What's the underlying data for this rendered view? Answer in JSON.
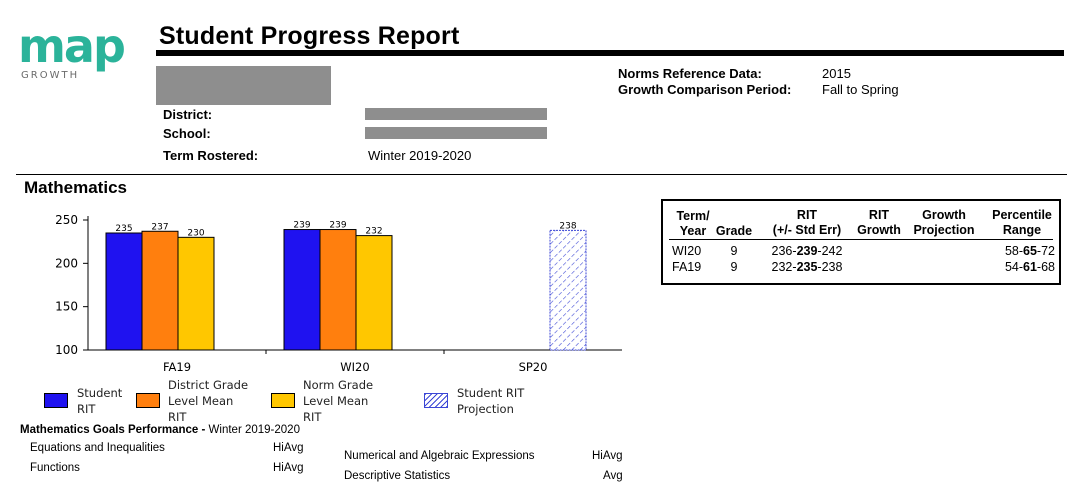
{
  "header": {
    "logo_text": "map",
    "logo_subtext": "GROWTH",
    "title": "Student Progress Report",
    "district_label": "District:",
    "school_label": "School:",
    "term_label": "Term Rostered:",
    "term_value": "Winter 2019-2020",
    "norms_label": "Norms Reference Data:",
    "norms_value": "2015",
    "growth_label": "Growth Comparison Period:",
    "growth_value": "Fall to Spring",
    "colors": {
      "logo": "#2bb39a"
    }
  },
  "section": {
    "title": "Mathematics"
  },
  "chart_data": {
    "type": "bar",
    "title": "",
    "xlabel": "",
    "ylabel": "",
    "ylim": [
      100,
      250
    ],
    "yticks": [
      100,
      150,
      200,
      250
    ],
    "grid": false,
    "categories": [
      "FA19",
      "WI20",
      "SP20"
    ],
    "series": [
      {
        "name": "Student RIT",
        "values": [
          235,
          239,
          null
        ],
        "color": "#1f12f0"
      },
      {
        "name": "District Grade Level Mean RIT",
        "values": [
          237,
          239,
          null
        ],
        "color": "#ff7f0e"
      },
      {
        "name": "Norm Grade Level Mean RIT",
        "values": [
          230,
          232,
          null
        ],
        "color": "#ffc700"
      },
      {
        "name": "Student RIT Projection",
        "values": [
          null,
          null,
          238
        ],
        "color": "#3b46d6",
        "pattern": "hatched"
      }
    ],
    "legend": {
      "placement": "bottom",
      "items": [
        {
          "lines": [
            "Student",
            "RIT"
          ]
        },
        {
          "lines": [
            "District Grade",
            "Level Mean",
            "RIT"
          ]
        },
        {
          "lines": [
            "Norm Grade",
            "Level Mean",
            "RIT"
          ]
        },
        {
          "lines": [
            "Student RIT",
            "Projection"
          ]
        }
      ]
    }
  },
  "goals": {
    "title_bold": "Mathematics Goals Performance - ",
    "title_term": "Winter 2019-2020",
    "items": [
      {
        "name": "Equations and Inequalities",
        "value": "HiAvg"
      },
      {
        "name": "Functions",
        "value": "HiAvg"
      },
      {
        "name": "Numerical and Algebraic Expressions",
        "value": "HiAvg"
      },
      {
        "name": "Descriptive Statistics",
        "value": "Avg"
      }
    ]
  },
  "rit_table": {
    "headers": {
      "term": [
        "Term/",
        "Year"
      ],
      "grade": "Grade",
      "rit": [
        "RIT",
        "(+/- Std Err)"
      ],
      "rit_growth": [
        "RIT",
        "Growth"
      ],
      "growth_projection": [
        "Growth",
        "Projection"
      ],
      "percentile": [
        "Percentile",
        "Range"
      ]
    },
    "rows": [
      {
        "term": "WI20",
        "grade": "9",
        "rit_low": "236-",
        "rit": "239",
        "rit_high": "-242",
        "pct_low": "58-",
        "pct": "65",
        "pct_high": "-72"
      },
      {
        "term": "FA19",
        "grade": "9",
        "rit_low": "232-",
        "rit": "235",
        "rit_high": "-238",
        "pct_low": "54-",
        "pct": "61",
        "pct_high": "-68"
      }
    ]
  }
}
